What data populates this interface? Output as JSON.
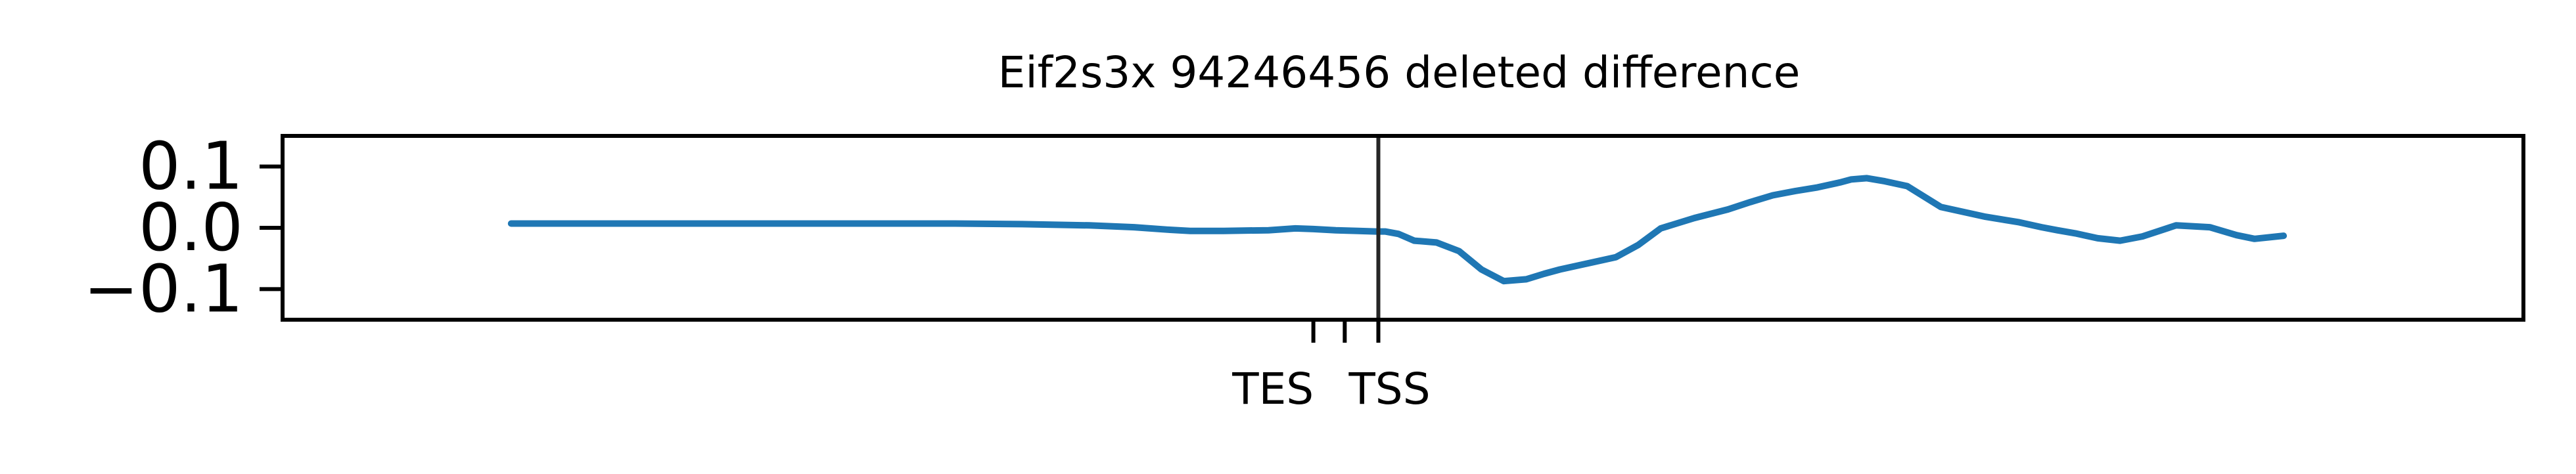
{
  "chart_data": {
    "type": "line",
    "title": "Eif2s3x 94246456 deleted difference",
    "xlabel": "",
    "ylabel": "",
    "xlim": [
      0,
      1000
    ],
    "ylim": [
      -0.15,
      0.15
    ],
    "yticks": [
      0.1,
      0.0,
      -0.1
    ],
    "ytick_labels": [
      "0.1",
      "0.0",
      "−0.1"
    ],
    "x_markers": [
      {
        "x": 460,
        "label": ""
      },
      {
        "x": 474,
        "label": ""
      },
      {
        "x": 489,
        "label": ""
      }
    ],
    "x_marker_labels": [
      {
        "x": 442,
        "label": "TES"
      },
      {
        "x": 494,
        "label": "TSS"
      }
    ],
    "vline_x": 489,
    "line_color": "#1f77b4",
    "series": [
      {
        "name": "",
        "x": [
          102,
          150,
          200,
          250,
          300,
          330,
          360,
          380,
          395,
          405,
          410,
          420,
          440,
          452,
          460,
          470,
          480,
          488,
          492,
          498,
          505,
          515,
          525,
          535,
          545,
          555,
          563,
          570,
          580,
          595,
          605,
          615,
          630,
          645,
          655,
          665,
          675,
          685,
          695,
          700,
          707,
          715,
          725,
          740,
          760,
          775,
          785,
          792,
          800,
          810,
          820,
          830,
          845,
          860,
          872,
          880,
          893
        ],
        "y": [
          0.007,
          0.007,
          0.007,
          0.007,
          0.007,
          0.006,
          0.004,
          0.001,
          -0.003,
          -0.005,
          -0.005,
          -0.005,
          -0.004,
          -0.001,
          -0.002,
          -0.004,
          -0.005,
          -0.006,
          -0.006,
          -0.01,
          -0.021,
          -0.024,
          -0.038,
          -0.068,
          -0.087,
          -0.084,
          -0.075,
          -0.068,
          -0.06,
          -0.048,
          -0.028,
          -0.001,
          0.016,
          0.03,
          0.042,
          0.053,
          0.06,
          0.066,
          0.074,
          0.079,
          0.081,
          0.076,
          0.068,
          0.034,
          0.018,
          0.009,
          0.001,
          -0.004,
          -0.009,
          -0.017,
          -0.021,
          -0.014,
          0.004,
          0.001,
          -0.012,
          -0.018,
          -0.013
        ]
      }
    ]
  }
}
